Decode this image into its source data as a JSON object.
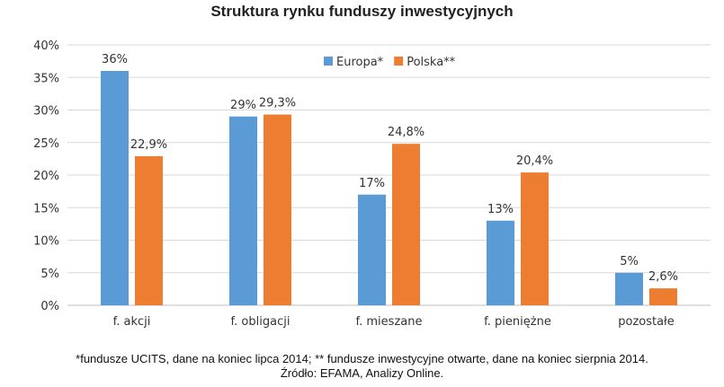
{
  "chart_data": {
    "type": "bar",
    "title": "Struktura rynku funduszy inwestycyjnych",
    "categories": [
      "f. akcji",
      "f. obligacji",
      "f. mieszane",
      "f. pieniężne",
      "pozostałe"
    ],
    "series": [
      {
        "name": "Europa*",
        "color": "#5b9bd5",
        "values": [
          36,
          29,
          17,
          13,
          5
        ],
        "labels": [
          "36%",
          "29%",
          "17%",
          "13%",
          "5%"
        ]
      },
      {
        "name": "Polska**",
        "color": "#ed7d31",
        "values": [
          22.9,
          29.3,
          24.8,
          20.4,
          2.6
        ],
        "labels": [
          "22,9%",
          "29,3%",
          "24,8%",
          "20,4%",
          "2,6%"
        ]
      }
    ],
    "ylim": [
      0,
      40
    ],
    "yticks": [
      0,
      5,
      10,
      15,
      20,
      25,
      30,
      35,
      40
    ],
    "ytick_labels": [
      "0%",
      "5%",
      "10%",
      "15%",
      "20%",
      "25%",
      "30%",
      "35%",
      "40%"
    ],
    "grid": true,
    "legend_position": "top-right",
    "xlabel": "",
    "ylabel": ""
  },
  "footnotes": [
    "*fundusze UCITS, dane na koniec lipca 2014; ** fundusze inwestycyjne otwarte, dane na koniec sierpnia 2014.",
    "Źródło: EFAMA, Analizy Online."
  ]
}
